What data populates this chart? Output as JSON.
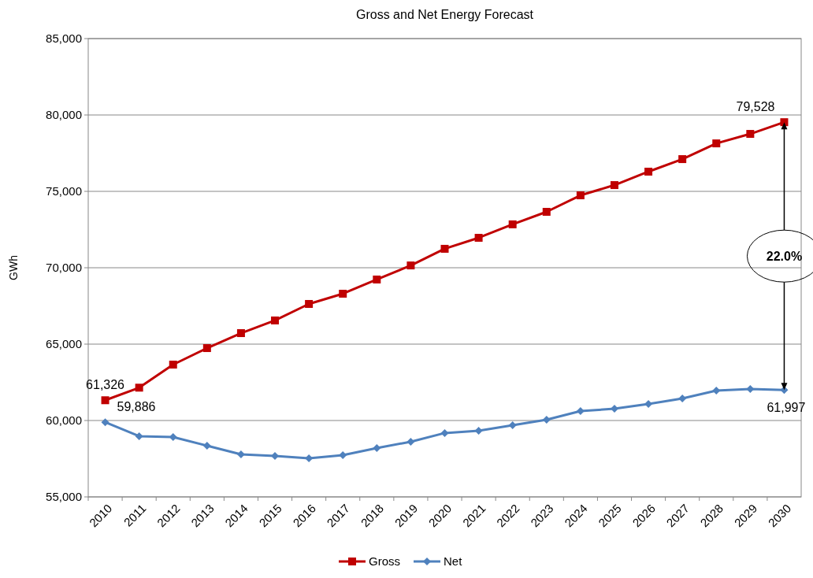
{
  "chart_data": {
    "type": "line",
    "title": "Gross and Net Energy Forecast",
    "ylabel": "GWh",
    "categories": [
      "2010",
      "2011",
      "2012",
      "2013",
      "2014",
      "2015",
      "2016",
      "2017",
      "2018",
      "2019",
      "2020",
      "2021",
      "2022",
      "2023",
      "2024",
      "2025",
      "2026",
      "2027",
      "2028",
      "2029",
      "2030"
    ],
    "series": [
      {
        "name": "Gross",
        "color": "#c00000",
        "marker": "square",
        "values": [
          61326,
          62150,
          63660,
          64740,
          65720,
          66550,
          67630,
          68300,
          69230,
          70150,
          71240,
          71960,
          72840,
          73660,
          74740,
          75410,
          76290,
          77110,
          78140,
          78760,
          79528
        ],
        "value_labels": [
          "61,326",
          null,
          null,
          null,
          null,
          null,
          null,
          null,
          null,
          null,
          null,
          null,
          null,
          null,
          null,
          null,
          null,
          null,
          null,
          null,
          "79,528"
        ]
      },
      {
        "name": "Net",
        "color": "#4f81bd",
        "marker": "diamond",
        "values": [
          59886,
          58970,
          58920,
          58350,
          57780,
          57680,
          57530,
          57730,
          58200,
          58610,
          59180,
          59330,
          59690,
          60050,
          60620,
          60770,
          61080,
          61440,
          61960,
          62060,
          61997
        ],
        "value_labels": [
          "59,886",
          null,
          null,
          null,
          null,
          null,
          null,
          null,
          null,
          null,
          null,
          null,
          null,
          null,
          null,
          null,
          null,
          null,
          null,
          null,
          "61,997"
        ]
      }
    ],
    "ylim": [
      55000,
      85000
    ],
    "yticks": [
      {
        "value": 55000,
        "label": "55,000"
      },
      {
        "value": 60000,
        "label": "60,000"
      },
      {
        "value": 65000,
        "label": "65,000"
      },
      {
        "value": 70000,
        "label": "70,000"
      },
      {
        "value": 75000,
        "label": "75,000"
      },
      {
        "value": 80000,
        "label": "80,000"
      },
      {
        "value": 85000,
        "label": "85,000"
      }
    ],
    "grid": "y",
    "legend": "bottom",
    "annotations": [
      "22.0%"
    ]
  }
}
